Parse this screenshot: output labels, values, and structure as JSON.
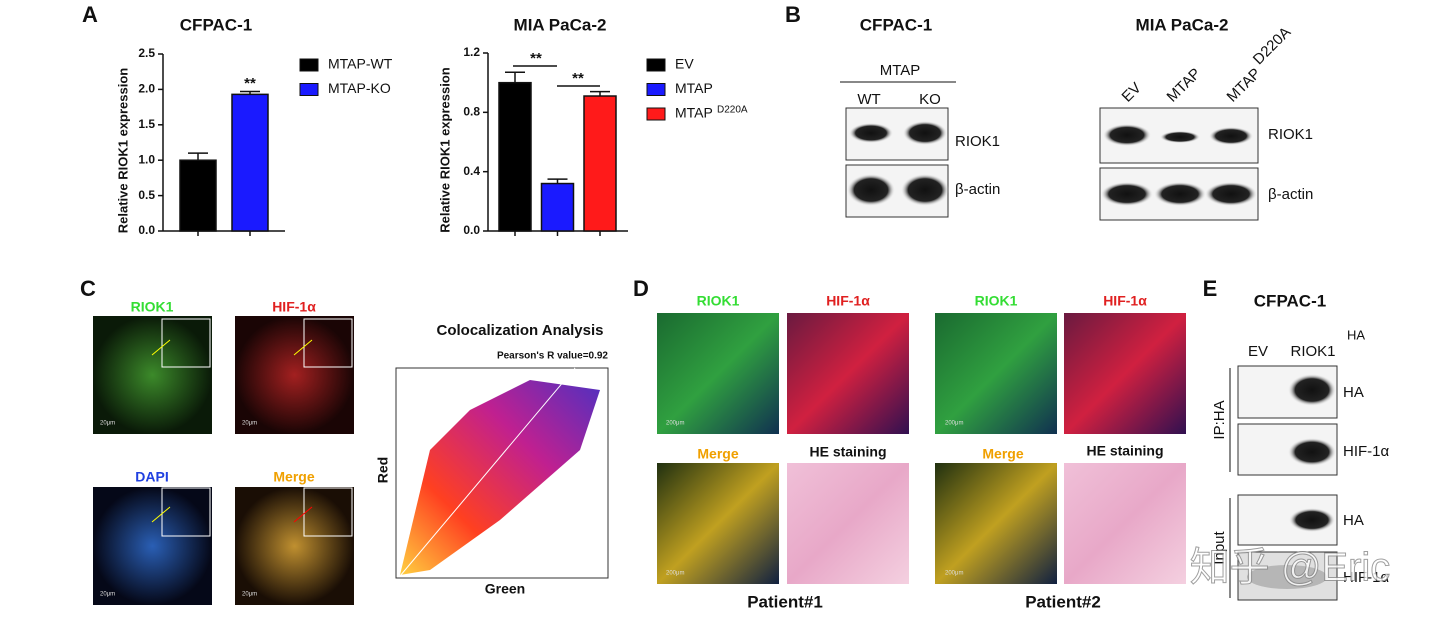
{
  "chart_data": [
    {
      "type": "bar",
      "title": "CFPAC-1",
      "ylabel": "Relative  RIOK1 expression",
      "categories": [
        "MTAP-WT",
        "MTAP-KO"
      ],
      "category_superscripts": [
        null,
        null
      ],
      "values": [
        1.0,
        1.93
      ],
      "errors": [
        0.1,
        0.04
      ],
      "colors": [
        "#000000",
        "#1a1aff"
      ],
      "ylim": [
        0,
        2.5
      ],
      "yticks": [
        {
          "value": 0,
          "label": "0.0"
        },
        0.5,
        {
          "value": 1,
          "label": "1.0"
        },
        1.5,
        {
          "value": 2,
          "label": "2.0"
        },
        2.5
      ],
      "annotations": [
        "**"
      ],
      "legend": "right"
    },
    {
      "type": "bar",
      "title": "MIA PaCa-2",
      "ylabel": "Relative  RIOK1 expression",
      "categories": [
        "EV",
        "MTAP",
        "MTAP"
      ],
      "category_superscripts": [
        null,
        null,
        "D220A"
      ],
      "values": [
        1.0,
        0.32,
        0.91
      ],
      "errors": [
        0.07,
        0.03,
        0.03
      ],
      "colors": [
        "#000000",
        "#1a1aff",
        "#ff1a1a"
      ],
      "ylim": [
        0,
        1.2
      ],
      "yticks": [
        {
          "value": 0,
          "label": "0.0"
        },
        0.4,
        0.8,
        1.2
      ],
      "annotations": [
        "**",
        "**"
      ],
      "legend": "right"
    }
  ],
  "panel_labels": [
    "A",
    "B",
    "C",
    "D",
    "E"
  ],
  "panel_b": {
    "left": {
      "title": "CFPAC-1",
      "group": "MTAP",
      "lanes": [
        "WT",
        "KO"
      ],
      "bands": [
        "RIOK1",
        "β-actin"
      ]
    },
    "right": {
      "title": "MIA PaCa-2",
      "lanes": [
        "EV",
        "MTAP"
      ],
      "mutant": {
        "text": "MTAP",
        "sup": "D220A"
      },
      "bands": [
        "RIOK1",
        "β-actin"
      ]
    }
  },
  "panel_c": {
    "stains": [
      "RIOK1",
      "HIF-1α",
      "DAPI",
      "Merge"
    ],
    "scale_bar": "20μm",
    "coloc": {
      "title": "Colocalization Analysis",
      "pearson": "Pearson's R value=0.92",
      "ylabel": "Red",
      "xlabel": "Green"
    }
  },
  "panel_d": {
    "stains": [
      "RIOK1",
      "HIF-1α",
      "Merge",
      "HE staining"
    ],
    "scale_bar": "200μm",
    "patients": [
      "Patient#1",
      "Patient#2"
    ]
  },
  "panel_e": {
    "title": "CFPAC-1",
    "lanes": [
      "EV",
      "RIOK1"
    ],
    "lane_sup": "HA",
    "groups": [
      "IP:HA",
      "Input"
    ],
    "bands": [
      "HA",
      "HIF-1α"
    ]
  },
  "watermark": "知乎 @Eric"
}
